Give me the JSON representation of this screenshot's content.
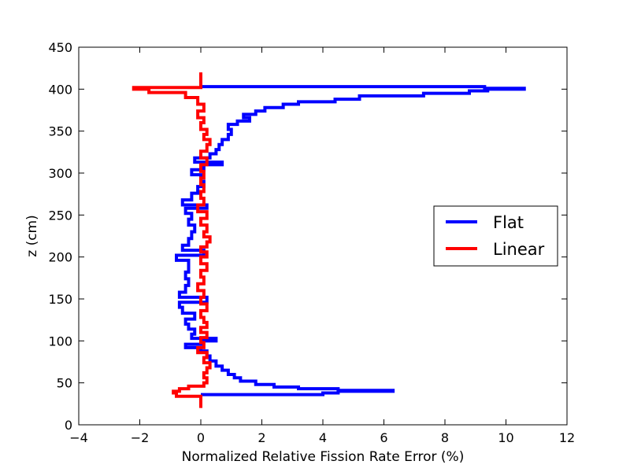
{
  "chart_data": {
    "type": "line",
    "title": "",
    "xlabel": "Normalized Relative Fission Rate Error (%)",
    "ylabel": "z (cm)",
    "xlim": [
      -4,
      12
    ],
    "ylim": [
      0,
      450
    ],
    "xticks": [
      -4,
      -2,
      0,
      2,
      4,
      6,
      8,
      10,
      12
    ],
    "yticks": [
      0,
      50,
      100,
      150,
      200,
      250,
      300,
      350,
      400,
      450
    ],
    "xtick_labels": [
      "−4",
      "−2",
      "0",
      "2",
      "4",
      "6",
      "8",
      "10",
      "12"
    ],
    "ytick_labels": [
      "0",
      "50",
      "100",
      "150",
      "200",
      "250",
      "300",
      "350",
      "400",
      "450"
    ],
    "grid": false,
    "legend_position": "center-right",
    "series": [
      {
        "name": "Flat",
        "color": "#0000ff",
        "step": true,
        "points": [
          [
            0,
            36
          ],
          [
            4,
            36
          ],
          [
            4,
            38
          ],
          [
            4.5,
            38
          ],
          [
            4.5,
            40
          ],
          [
            6.3,
            40
          ],
          [
            6.3,
            41
          ],
          [
            4.5,
            41
          ],
          [
            4.5,
            43
          ],
          [
            3.2,
            43
          ],
          [
            3.2,
            45
          ],
          [
            2.4,
            45
          ],
          [
            2.4,
            48
          ],
          [
            1.8,
            48
          ],
          [
            1.8,
            52
          ],
          [
            1.3,
            52
          ],
          [
            1.3,
            56
          ],
          [
            1.1,
            56
          ],
          [
            1.1,
            60
          ],
          [
            0.9,
            60
          ],
          [
            0.9,
            65
          ],
          [
            0.7,
            65
          ],
          [
            0.7,
            70
          ],
          [
            0.5,
            70
          ],
          [
            0.5,
            76
          ],
          [
            0.3,
            76
          ],
          [
            0.3,
            82
          ],
          [
            0.2,
            82
          ],
          [
            0.2,
            88
          ],
          [
            0.0,
            88
          ],
          [
            0.0,
            92
          ],
          [
            -0.5,
            92
          ],
          [
            -0.5,
            96
          ],
          [
            0.0,
            96
          ],
          [
            0.0,
            100
          ],
          [
            0.5,
            100
          ],
          [
            0.5,
            103
          ],
          [
            -0.3,
            103
          ],
          [
            -0.3,
            108
          ],
          [
            -0.2,
            108
          ],
          [
            -0.2,
            114
          ],
          [
            -0.4,
            114
          ],
          [
            -0.4,
            120
          ],
          [
            -0.5,
            120
          ],
          [
            -0.5,
            126
          ],
          [
            -0.2,
            126
          ],
          [
            -0.2,
            133
          ],
          [
            -0.6,
            133
          ],
          [
            -0.6,
            140
          ],
          [
            -0.7,
            140
          ],
          [
            -0.7,
            146
          ],
          [
            0.2,
            146
          ],
          [
            0.2,
            152
          ],
          [
            -0.7,
            152
          ],
          [
            -0.7,
            158
          ],
          [
            -0.5,
            158
          ],
          [
            -0.5,
            166
          ],
          [
            -0.4,
            166
          ],
          [
            -0.4,
            174
          ],
          [
            -0.5,
            174
          ],
          [
            -0.5,
            182
          ],
          [
            -0.4,
            182
          ],
          [
            -0.4,
            190
          ],
          [
            -0.4,
            196
          ],
          [
            -0.8,
            196
          ],
          [
            -0.8,
            202
          ],
          [
            0.1,
            202
          ],
          [
            0.1,
            208
          ],
          [
            -0.6,
            208
          ],
          [
            -0.6,
            214
          ],
          [
            -0.4,
            214
          ],
          [
            -0.4,
            222
          ],
          [
            -0.3,
            222
          ],
          [
            -0.3,
            230
          ],
          [
            -0.2,
            230
          ],
          [
            -0.2,
            238
          ],
          [
            -0.4,
            238
          ],
          [
            -0.4,
            245
          ],
          [
            -0.3,
            245
          ],
          [
            -0.3,
            252
          ],
          [
            -0.5,
            252
          ],
          [
            -0.5,
            258
          ],
          [
            0.2,
            258
          ],
          [
            0.2,
            262
          ],
          [
            -0.6,
            262
          ],
          [
            -0.6,
            268
          ],
          [
            -0.3,
            268
          ],
          [
            -0.3,
            276
          ],
          [
            -0.1,
            276
          ],
          [
            -0.1,
            284
          ],
          [
            0.1,
            284
          ],
          [
            0.1,
            290
          ],
          [
            0.0,
            290
          ],
          [
            0.0,
            298
          ],
          [
            -0.3,
            298
          ],
          [
            -0.3,
            304
          ],
          [
            0.1,
            304
          ],
          [
            0.1,
            310
          ],
          [
            0.7,
            310
          ],
          [
            0.7,
            313
          ],
          [
            -0.2,
            313
          ],
          [
            -0.2,
            318
          ],
          [
            0.3,
            318
          ],
          [
            0.3,
            323
          ],
          [
            0.5,
            323
          ],
          [
            0.5,
            328
          ],
          [
            0.6,
            328
          ],
          [
            0.6,
            334
          ],
          [
            0.7,
            334
          ],
          [
            0.7,
            340
          ],
          [
            0.9,
            340
          ],
          [
            0.9,
            346
          ],
          [
            1.0,
            346
          ],
          [
            1.0,
            352
          ],
          [
            0.9,
            352
          ],
          [
            0.9,
            358
          ],
          [
            1.2,
            358
          ],
          [
            1.2,
            362
          ],
          [
            1.6,
            362
          ],
          [
            1.6,
            366
          ],
          [
            1.4,
            366
          ],
          [
            1.4,
            370
          ],
          [
            1.8,
            370
          ],
          [
            1.8,
            374
          ],
          [
            2.1,
            374
          ],
          [
            2.1,
            378
          ],
          [
            2.7,
            378
          ],
          [
            2.7,
            382
          ],
          [
            3.2,
            382
          ],
          [
            3.2,
            385
          ],
          [
            4.4,
            385
          ],
          [
            4.4,
            388
          ],
          [
            5.2,
            388
          ],
          [
            5.2,
            392
          ],
          [
            7.3,
            392
          ],
          [
            7.3,
            395
          ],
          [
            8.8,
            395
          ],
          [
            8.8,
            398
          ],
          [
            9.4,
            398
          ],
          [
            9.4,
            400
          ],
          [
            10.6,
            400
          ],
          [
            10.6,
            401
          ],
          [
            9.3,
            401
          ],
          [
            9.3,
            403
          ],
          [
            0,
            403
          ]
        ]
      },
      {
        "name": "Linear",
        "color": "#ff0000",
        "step": true,
        "points": [
          [
            0,
            20
          ],
          [
            0,
            34
          ],
          [
            -0.8,
            34
          ],
          [
            -0.8,
            38
          ],
          [
            -0.9,
            38
          ],
          [
            -0.9,
            40
          ],
          [
            -0.7,
            40
          ],
          [
            -0.7,
            43
          ],
          [
            -0.4,
            43
          ],
          [
            -0.4,
            46
          ],
          [
            0.1,
            46
          ],
          [
            0.1,
            50
          ],
          [
            0.2,
            50
          ],
          [
            0.2,
            56
          ],
          [
            0.1,
            56
          ],
          [
            0.1,
            62
          ],
          [
            0.2,
            62
          ],
          [
            0.2,
            68
          ],
          [
            0.3,
            68
          ],
          [
            0.3,
            74
          ],
          [
            0.1,
            74
          ],
          [
            0.1,
            80
          ],
          [
            0.2,
            80
          ],
          [
            0.2,
            86
          ],
          [
            -0.1,
            86
          ],
          [
            -0.1,
            92
          ],
          [
            0.1,
            92
          ],
          [
            0.1,
            98
          ],
          [
            0.0,
            98
          ],
          [
            0.0,
            104
          ],
          [
            0.2,
            104
          ],
          [
            0.2,
            110
          ],
          [
            0.0,
            110
          ],
          [
            0.0,
            116
          ],
          [
            0.2,
            116
          ],
          [
            0.2,
            122
          ],
          [
            0.1,
            122
          ],
          [
            0.1,
            128
          ],
          [
            0.0,
            128
          ],
          [
            0.0,
            136
          ],
          [
            0.2,
            136
          ],
          [
            0.2,
            144
          ],
          [
            0.0,
            144
          ],
          [
            0.0,
            152
          ],
          [
            0.1,
            152
          ],
          [
            0.1,
            160
          ],
          [
            -0.1,
            160
          ],
          [
            -0.1,
            168
          ],
          [
            0.1,
            168
          ],
          [
            0.1,
            176
          ],
          [
            0.0,
            176
          ],
          [
            0.0,
            184
          ],
          [
            0.2,
            184
          ],
          [
            0.2,
            192
          ],
          [
            0.0,
            192
          ],
          [
            0.0,
            200
          ],
          [
            0.2,
            200
          ],
          [
            0.2,
            206
          ],
          [
            0.0,
            206
          ],
          [
            0.0,
            212
          ],
          [
            0.2,
            212
          ],
          [
            0.2,
            218
          ],
          [
            0.3,
            218
          ],
          [
            0.3,
            224
          ],
          [
            0.1,
            224
          ],
          [
            0.1,
            230
          ],
          [
            0.2,
            230
          ],
          [
            0.2,
            238
          ],
          [
            0.0,
            238
          ],
          [
            0.0,
            246
          ],
          [
            0.2,
            246
          ],
          [
            0.2,
            254
          ],
          [
            -0.1,
            254
          ],
          [
            -0.1,
            262
          ],
          [
            0.1,
            262
          ],
          [
            0.1,
            270
          ],
          [
            0.0,
            270
          ],
          [
            0.0,
            278
          ],
          [
            0.1,
            278
          ],
          [
            0.1,
            286
          ],
          [
            0.0,
            286
          ],
          [
            0.0,
            294
          ],
          [
            0.1,
            294
          ],
          [
            0.1,
            302
          ],
          [
            0.0,
            302
          ],
          [
            0.0,
            310
          ],
          [
            0.2,
            310
          ],
          [
            0.2,
            318
          ],
          [
            0.0,
            318
          ],
          [
            0.0,
            326
          ],
          [
            0.2,
            326
          ],
          [
            0.2,
            334
          ],
          [
            0.3,
            334
          ],
          [
            0.3,
            340
          ],
          [
            0.1,
            340
          ],
          [
            0.1,
            346
          ],
          [
            0.2,
            346
          ],
          [
            0.2,
            352
          ],
          [
            0.0,
            352
          ],
          [
            0.0,
            360
          ],
          [
            0.1,
            360
          ],
          [
            0.1,
            366
          ],
          [
            -0.1,
            366
          ],
          [
            -0.1,
            374
          ],
          [
            0.1,
            374
          ],
          [
            0.1,
            382
          ],
          [
            -0.1,
            382
          ],
          [
            -0.1,
            390
          ],
          [
            -0.5,
            390
          ],
          [
            -0.5,
            396
          ],
          [
            -1.7,
            396
          ],
          [
            -1.7,
            400
          ],
          [
            -2.2,
            400
          ],
          [
            -2.2,
            402
          ],
          [
            0,
            402
          ],
          [
            0,
            420
          ]
        ]
      }
    ]
  }
}
